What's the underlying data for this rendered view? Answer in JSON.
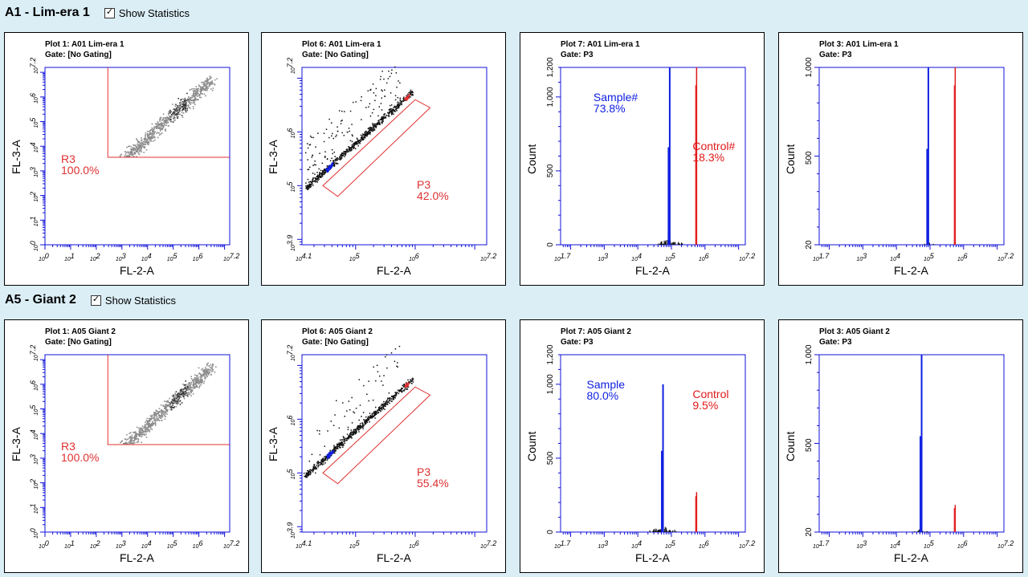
{
  "sections": [
    {
      "title": "A1 - Lim-era 1",
      "show_statistics_label": "Show Statistics",
      "show_statistics_checked": true,
      "plots": [
        {
          "kind": "dotplot-quad",
          "title": "Plot 1: A01 Lim-era 1",
          "gate": "Gate:  [No Gating]",
          "xlabel": "FL-2-A",
          "ylabel": "FL-3-A",
          "xticks": [
            "10^0",
            "10^1",
            "10^2",
            "10^3",
            "10^4",
            "10^5",
            "10^6",
            "10^7.2"
          ],
          "yticks": [
            "10^0",
            "10^1",
            "10^2",
            "10^3",
            "10^4",
            "10^5",
            "10^6",
            "10^7.2"
          ],
          "region": {
            "name": "R3",
            "percent": "100.0%"
          }
        },
        {
          "kind": "dotplot-gate",
          "title": "Plot 6: A01 Lim-era 1",
          "gate": "Gate:  [No Gating]",
          "xlabel": "FL-2-A",
          "ylabel": "FL-3-A",
          "xticks": [
            "10^4.1",
            "10^5",
            "10^6",
            "10^7.2"
          ],
          "yticks": [
            "10^3.9",
            "10^5",
            "10^6",
            "10^7.2"
          ],
          "region": {
            "name": "P3",
            "percent": "42.0%"
          }
        },
        {
          "kind": "histogram",
          "title": "Plot 7: A01 Lim-era 1",
          "gate": "Gate:  P3",
          "xlabel": "FL-2-A",
          "ylabel": "Count",
          "xticks": [
            "10^1.7",
            "10^3",
            "10^4",
            "10^5",
            "10^6",
            "10^7.2"
          ],
          "yticks": [
            "0",
            "500",
            "1,000",
            "1,200"
          ],
          "sample": {
            "label": "Sample#",
            "percent": "73.8%"
          },
          "control": {
            "label": "Control#",
            "percent": "18.3%"
          }
        },
        {
          "kind": "histogram",
          "title": "Plot 3: A01 Lim-era 1",
          "gate": "Gate:  P3",
          "xlabel": "FL-2-A",
          "ylabel": "Count",
          "xticks": [
            "10^1.7",
            "10^3",
            "10^4",
            "10^5",
            "10^6",
            "10^7.2"
          ],
          "yticks": [
            "20",
            "500",
            "1,000"
          ]
        }
      ]
    },
    {
      "title": "A5 - Giant 2",
      "show_statistics_label": "Show Statistics",
      "show_statistics_checked": true,
      "plots": [
        {
          "kind": "dotplot-quad",
          "title": "Plot 1: A05 Giant 2",
          "gate": "Gate:  [No Gating]",
          "xlabel": "FL-2-A",
          "ylabel": "FL-3-A",
          "xticks": [
            "10^0",
            "10^1",
            "10^2",
            "10^3",
            "10^4",
            "10^5",
            "10^6",
            "10^7.2"
          ],
          "yticks": [
            "10^0",
            "10^1",
            "10^2",
            "10^3",
            "10^4",
            "10^5",
            "10^6",
            "10^7.2"
          ],
          "region": {
            "name": "R3",
            "percent": "100.0%"
          }
        },
        {
          "kind": "dotplot-gate",
          "title": "Plot 6: A05 Giant 2",
          "gate": "Gate:  [No Gating]",
          "xlabel": "FL-2-A",
          "ylabel": "FL-3-A",
          "xticks": [
            "10^4.1",
            "10^5",
            "10^6",
            "10^7.2"
          ],
          "yticks": [
            "10^3.9",
            "10^5",
            "10^6",
            "10^7.2"
          ],
          "region": {
            "name": "P3",
            "percent": "55.4%"
          }
        },
        {
          "kind": "histogram",
          "title": "Plot 7: A05 Giant 2",
          "gate": "Gate:  P3",
          "xlabel": "FL-2-A",
          "ylabel": "Count",
          "xticks": [
            "10^1.7",
            "10^3",
            "10^4",
            "10^5",
            "10^6",
            "10^7.2"
          ],
          "yticks": [
            "0",
            "500",
            "1,000",
            "1,200"
          ],
          "sample": {
            "label": "Sample",
            "percent": "80.0%"
          },
          "control": {
            "label": "Control",
            "percent": "9.5%"
          }
        },
        {
          "kind": "histogram",
          "title": "Plot 3: A05 Giant 2",
          "gate": "Gate:  P3",
          "xlabel": "FL-2-A",
          "ylabel": "Count",
          "xticks": [
            "10^1.7",
            "10^3",
            "10^4",
            "10^5",
            "10^6",
            "10^7.2"
          ],
          "yticks": [
            "20",
            "500",
            "1,000"
          ]
        }
      ]
    }
  ],
  "colors": {
    "axis": "#1010d8",
    "gate": "#e03030",
    "sample": "#1020e0",
    "control": "#e01818",
    "dots": "#8c8c8c",
    "background": "#dbeef6"
  },
  "chart_data": [
    {
      "type": "scatter",
      "title": "Plot 1: A01 Lim-era 1",
      "xlabel": "FL-2-A",
      "ylabel": "FL-3-A",
      "xlim": [
        0,
        7.2
      ],
      "ylim": [
        0,
        7.2
      ],
      "scale": "log10",
      "regions": [
        {
          "name": "R3",
          "percent": 100.0
        }
      ]
    },
    {
      "type": "scatter",
      "title": "Plot 6: A01 Lim-era 1",
      "xlabel": "FL-2-A",
      "ylabel": "FL-3-A",
      "xlim": [
        4.1,
        7.2
      ],
      "ylim": [
        3.9,
        7.2
      ],
      "scale": "log10",
      "regions": [
        {
          "name": "P3",
          "percent": 42.0
        }
      ]
    },
    {
      "type": "bar",
      "title": "Plot 7: A01 Lim-era 1",
      "xlabel": "FL-2-A",
      "ylabel": "Count",
      "xlim": [
        1.7,
        7.2
      ],
      "ylim": [
        0,
        1200
      ],
      "series": [
        {
          "name": "Sample#",
          "percent": 73.8,
          "peak_x": 4.95,
          "peak_count": 1200
        },
        {
          "name": "Control#",
          "percent": 18.3,
          "peak_x": 5.75,
          "peak_count": 1200
        }
      ]
    },
    {
      "type": "bar",
      "title": "Plot 3: A01 Lim-era 1",
      "xlabel": "FL-2-A",
      "ylabel": "Count",
      "xlim": [
        1.7,
        7.2
      ],
      "ylim": [
        20,
        1000
      ],
      "series": [
        {
          "peak_x": 4.95,
          "peak_count": 1000
        },
        {
          "peak_x": 5.75,
          "peak_count": 1000
        }
      ]
    },
    {
      "type": "scatter",
      "title": "Plot 1: A05 Giant 2",
      "xlabel": "FL-2-A",
      "ylabel": "FL-3-A",
      "xlim": [
        0,
        7.2
      ],
      "ylim": [
        0,
        7.2
      ],
      "scale": "log10",
      "regions": [
        {
          "name": "R3",
          "percent": 100.0
        }
      ]
    },
    {
      "type": "scatter",
      "title": "Plot 6: A05 Giant 2",
      "xlabel": "FL-2-A",
      "ylabel": "FL-3-A",
      "xlim": [
        4.1,
        7.2
      ],
      "ylim": [
        3.9,
        7.2
      ],
      "scale": "log10",
      "regions": [
        {
          "name": "P3",
          "percent": 55.4
        }
      ]
    },
    {
      "type": "bar",
      "title": "Plot 7: A05 Giant 2",
      "xlabel": "FL-2-A",
      "ylabel": "Count",
      "xlim": [
        1.7,
        7.2
      ],
      "ylim": [
        0,
        1200
      ],
      "series": [
        {
          "name": "Sample",
          "percent": 80.0,
          "peak_x": 4.75,
          "peak_count": 1000
        },
        {
          "name": "Control",
          "percent": 9.5,
          "peak_x": 5.75,
          "peak_count": 270
        }
      ]
    },
    {
      "type": "bar",
      "title": "Plot 3: A05 Giant 2",
      "xlabel": "FL-2-A",
      "ylabel": "Count",
      "xlim": [
        1.7,
        7.2
      ],
      "ylim": [
        20,
        1000
      ],
      "series": [
        {
          "peak_x": 4.75,
          "peak_count": 1000
        },
        {
          "peak_x": 5.75,
          "peak_count": 170
        }
      ]
    }
  ]
}
